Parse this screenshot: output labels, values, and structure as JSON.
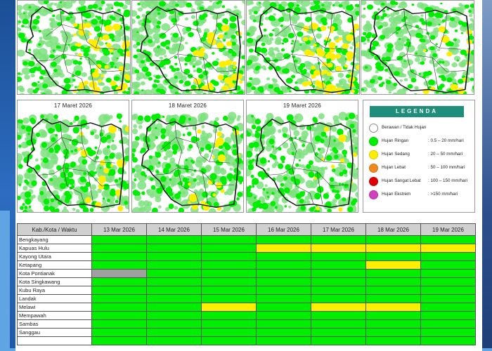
{
  "colors": {
    "berawan": "#ffffff",
    "ringan": "#00ee00",
    "sedang": "#ffee00",
    "lebat": "#f08a1c",
    "sangat_lebat": "#e00000",
    "ekstrem": "#d040c0",
    "nodata": "#a0a0a0",
    "legend_header": "#1f8f7c"
  },
  "maps": [
    {
      "title": "",
      "yellow": 0.28
    },
    {
      "title": "",
      "yellow": 0.22
    },
    {
      "title": "",
      "yellow": 0.4
    },
    {
      "title": "",
      "yellow": 0.08
    },
    {
      "title": "17 Maret 2026",
      "yellow": 0.1
    },
    {
      "title": "18 Maret 2026",
      "yellow": 0.12
    },
    {
      "title": "19 Maret 2026",
      "yellow": 0.06
    }
  ],
  "legend": {
    "title": "LEGENDA",
    "items": [
      {
        "label": "Berawan / Tidak Hujan",
        "range": "",
        "color_key": "berawan"
      },
      {
        "label": "Hujan Ringan",
        "range": ": 0.5 – 20 mm/hari",
        "color_key": "ringan"
      },
      {
        "label": "Hujan Sedang",
        "range": ": 20 – 50 mm/hari",
        "color_key": "sedang"
      },
      {
        "label": "Hujan Lebat",
        "range": ": 50 – 100 mm/hari",
        "color_key": "lebat"
      },
      {
        "label": "Hujan Sangat Lebat",
        "range": ": 100 – 150 mm/hari",
        "color_key": "sangat_lebat"
      },
      {
        "label": "Hujan Ekstrem",
        "range": ": >150 mm/hari",
        "color_key": "ekstrem"
      }
    ]
  },
  "table": {
    "header": "Kab./Kota / Waktu",
    "dates": [
      "13 Mar 2026",
      "14 Mar 2026",
      "15 Mar 2026",
      "16 Mar 2026",
      "17 Mar 2026",
      "18 Mar 2026",
      "19 Mar 2026"
    ],
    "rows": [
      {
        "name": "Bengkayang",
        "cells": [
          "ringan",
          "ringan",
          "ringan",
          "ringan",
          "ringan",
          "ringan",
          "ringan"
        ]
      },
      {
        "name": "Kapuas Hulu",
        "cells": [
          "ringan",
          "ringan",
          "ringan",
          "sedang",
          "sedang",
          "sedang",
          "sedang"
        ]
      },
      {
        "name": "Kayong Utara",
        "cells": [
          "ringan",
          "ringan",
          "ringan",
          "ringan",
          "ringan",
          "ringan",
          "ringan"
        ]
      },
      {
        "name": "Ketapang",
        "cells": [
          "ringan",
          "ringan",
          "ringan",
          "ringan",
          "ringan",
          "sedang",
          "ringan"
        ]
      },
      {
        "name": "Kota Pontianak",
        "cells": [
          "nodata",
          "ringan",
          "ringan",
          "ringan",
          "ringan",
          "ringan",
          "ringan"
        ]
      },
      {
        "name": "Kota Singkawang",
        "cells": [
          "ringan",
          "ringan",
          "ringan",
          "ringan",
          "ringan",
          "ringan",
          "ringan"
        ]
      },
      {
        "name": "Kubu Raya",
        "cells": [
          "ringan",
          "ringan",
          "ringan",
          "ringan",
          "ringan",
          "ringan",
          "ringan"
        ]
      },
      {
        "name": "Landak",
        "cells": [
          "ringan",
          "ringan",
          "ringan",
          "ringan",
          "ringan",
          "ringan",
          "ringan"
        ]
      },
      {
        "name": "Melawi",
        "cells": [
          "ringan",
          "ringan",
          "sedang",
          "ringan",
          "sedang",
          "sedang",
          "ringan"
        ]
      },
      {
        "name": "Mempawah",
        "cells": [
          "ringan",
          "ringan",
          "ringan",
          "ringan",
          "ringan",
          "ringan",
          "ringan"
        ]
      },
      {
        "name": "Sambas",
        "cells": [
          "ringan",
          "ringan",
          "ringan",
          "ringan",
          "ringan",
          "ringan",
          "ringan"
        ]
      },
      {
        "name": "Sanggau",
        "cells": [
          "ringan",
          "ringan",
          "ringan",
          "ringan",
          "ringan",
          "ringan",
          "ringan"
        ]
      },
      {
        "name": "",
        "cells": [
          "ringan",
          "ringan",
          "ringan",
          "ringan",
          "ringan",
          "ringan",
          "ringan"
        ]
      }
    ]
  }
}
